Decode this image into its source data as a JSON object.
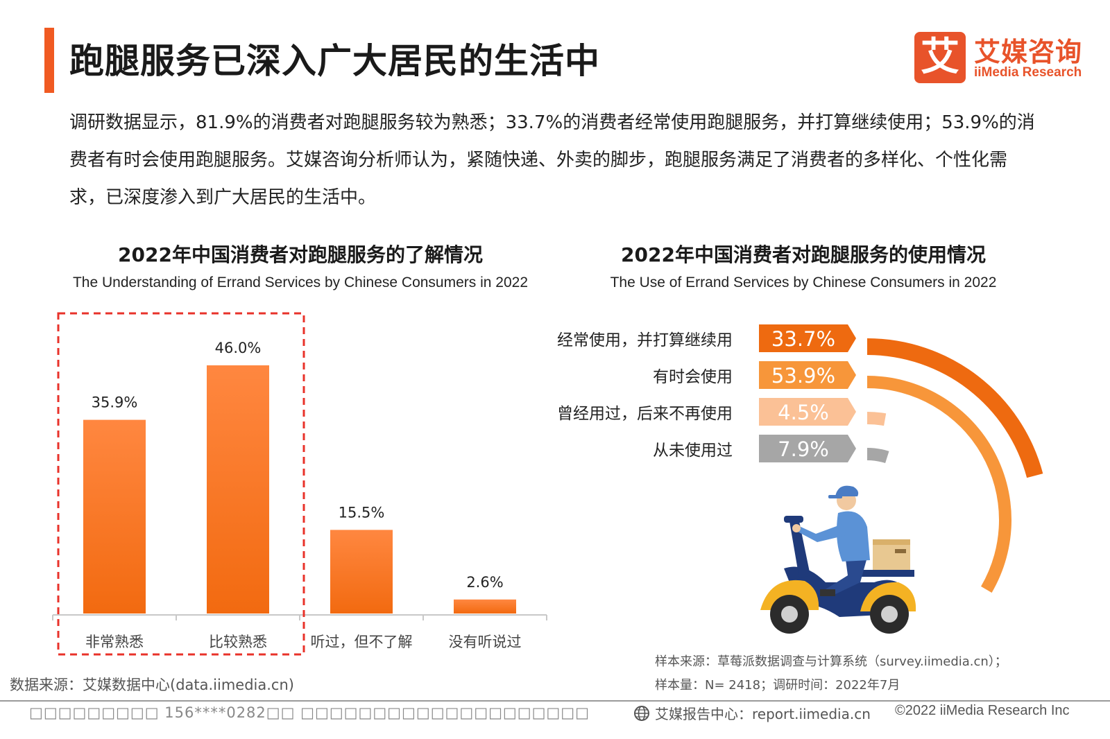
{
  "header": {
    "title": "跑腿服务已深入广大居民的生活中",
    "logo_mark": "艾",
    "logo_cn": "艾媒咨询",
    "logo_en": "iiMedia Research"
  },
  "intro": {
    "text": "调研数据显示，81.9%的消费者对跑腿服务较为熟悉；33.7%的消费者经常使用跑腿服务，并打算继续使用；53.9%的消费者有时会使用跑腿服务。艾媒咨询分析师认为，紧随快递、外卖的脚步，跑腿服务满足了消费者的多样化、个性化需求，已深度渗入到广大居民的生活中。"
  },
  "colors": {
    "accent": "#f05a22",
    "bar": "#f26a1b",
    "bar_light": "#ff8a3d",
    "highlight_box": "#e8322a",
    "usage_often": "#ee6a10",
    "usage_sometimes": "#f7963a",
    "usage_once": "#fbc196",
    "usage_never": "#a6a6a6"
  },
  "chart_data": [
    {
      "type": "bar",
      "title": "2022年中国消费者对跑腿服务的了解情况",
      "subtitle": "The Understanding of Errand Services by Chinese Consumers in 2022",
      "categories": [
        "非常熟悉",
        "比较熟悉",
        "听过，但不了解",
        "没有听说过"
      ],
      "values": [
        35.9,
        46.0,
        15.5,
        2.6
      ],
      "value_labels": [
        "35.9%",
        "46.0%",
        "15.5%",
        "2.6%"
      ],
      "unit": "%",
      "ylim": [
        0,
        46.0
      ],
      "highlight_categories": [
        "非常熟悉",
        "比较熟悉"
      ],
      "grid": false
    },
    {
      "type": "bar",
      "title": "2022年中国消费者对跑腿服务的使用情况",
      "subtitle": "The Use of Errand Services by Chinese Consumers in 2022",
      "categories": [
        "经常使用，并打算继续用",
        "有时会使用",
        "曾经用过，后来不再使用",
        "从未使用过"
      ],
      "values": [
        33.7,
        53.9,
        4.5,
        7.9
      ],
      "value_labels": [
        "33.7%",
        "53.9%",
        "4.5%",
        "7.9%"
      ],
      "unit": "%",
      "ylim": [
        0,
        100
      ]
    }
  ],
  "sources": {
    "data_source": "数据来源：艾媒数据中心(data.iimedia.cn)",
    "sample_source": "样本来源：草莓派数据调查与计算系统（survey.iimedia.cn）；",
    "sample_size": "样本量：N= 2418；调研时间：2022年7月"
  },
  "footer": {
    "left": "□□□□□□□□□ 156****0282□□ □□□□□□□□□□□□□□□□□□□□",
    "report": "艾媒报告中心：report.iimedia.cn",
    "copyright": "©2022  iiMedia Research  Inc",
    "globe_icon": "globe-icon"
  }
}
